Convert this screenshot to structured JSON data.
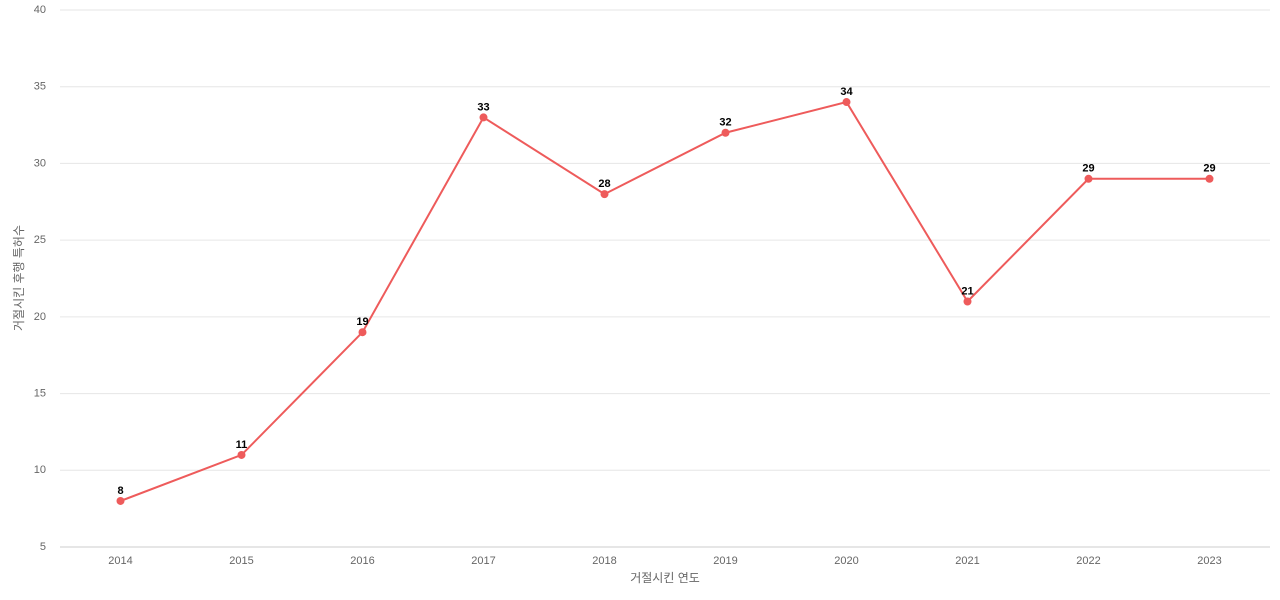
{
  "chart_data": {
    "type": "line",
    "x_label": "거절시킨 연도",
    "y_label": "거절시킨 후행 특허수",
    "categories": [
      "2014",
      "2015",
      "2016",
      "2017",
      "2018",
      "2019",
      "2020",
      "2021",
      "2022",
      "2023"
    ],
    "series": [
      {
        "color": "#ee5b5b",
        "values": [
          8,
          11,
          19,
          33,
          28,
          32,
          34,
          21,
          29,
          29
        ]
      }
    ],
    "ylim": [
      5,
      40
    ],
    "yticks": [
      5,
      10,
      15,
      20,
      25,
      30,
      35,
      40
    ],
    "grid": true
  }
}
